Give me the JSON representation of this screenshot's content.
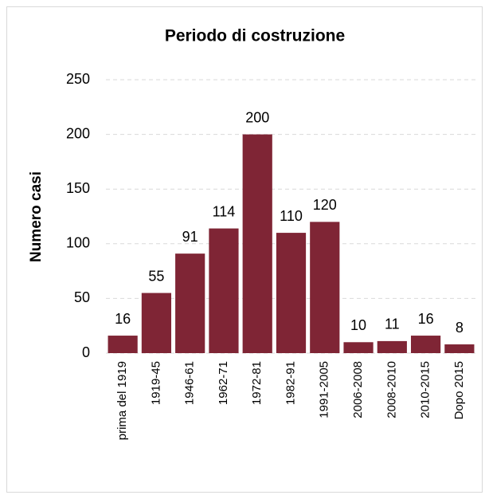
{
  "chart_data": {
    "type": "bar",
    "title": "Periodo di costruzione",
    "y_label": "Numero casi",
    "categories": [
      "prima del 1919",
      "1919-45",
      "1946-61",
      "1962-71",
      "1972-81",
      "1982-91",
      "1991-2005",
      "2006-2008",
      "2008-2010",
      "2010-2015",
      "Dopo 2015"
    ],
    "values": [
      16,
      55,
      91,
      114,
      200,
      110,
      120,
      10,
      11,
      16,
      8
    ],
    "color": "#7f2535",
    "ylim": [
      0,
      250
    ],
    "yticks": [
      0,
      50,
      100,
      150,
      200,
      250
    ],
    "grid": true
  }
}
